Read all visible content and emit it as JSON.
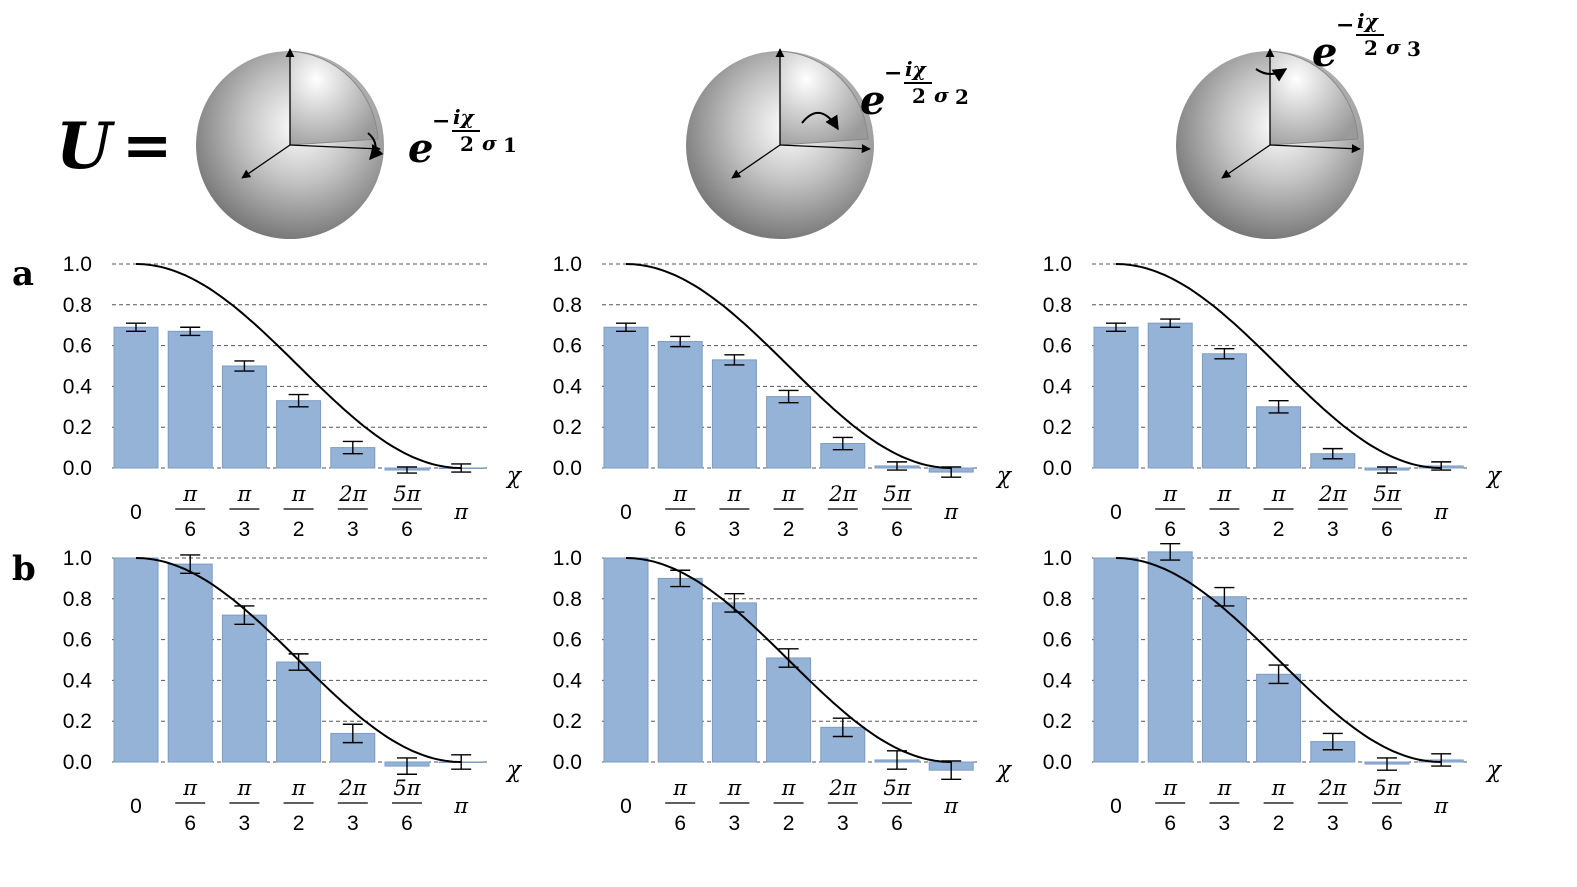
{
  "header": {
    "operator": "U",
    "equals": "=",
    "exponentials": [
      {
        "base": "e",
        "sign": "−",
        "numerator": "iχ",
        "denominator": "2",
        "sigma": "σ",
        "index": "1"
      },
      {
        "base": "e",
        "sign": "−",
        "numerator": "iχ",
        "denominator": "2",
        "sigma": "σ",
        "index": "2"
      },
      {
        "base": "e",
        "sign": "−",
        "numerator": "iχ",
        "denominator": "2",
        "sigma": "σ",
        "index": "3"
      }
    ]
  },
  "row_labels": [
    "a",
    "b"
  ],
  "axis": {
    "xlabel": "χ",
    "yticks": [
      "0.0",
      "0.2",
      "0.4",
      "0.6",
      "0.8",
      "1.0"
    ],
    "ylim": [
      0,
      1.0
    ]
  },
  "xticks": [
    {
      "num": "0",
      "den": ""
    },
    {
      "num": "π",
      "den": "6"
    },
    {
      "num": "π",
      "den": "3"
    },
    {
      "num": "π",
      "den": "2"
    },
    {
      "num": "2π",
      "den": "3"
    },
    {
      "num": "5π",
      "den": "6"
    },
    {
      "num": "π",
      "den": ""
    }
  ],
  "colors": {
    "bar": "#95b3d7",
    "bar_edge": "#7c9cc4",
    "curve": "#000000",
    "grid": "#555555"
  },
  "chart_data": [
    {
      "type": "bar",
      "panel": "a1",
      "rotation": "σ1",
      "categories": [
        "0",
        "π/6",
        "π/3",
        "π/2",
        "2π/3",
        "5π/6",
        "π"
      ],
      "chi": [
        0,
        0.5236,
        1.0472,
        1.5708,
        2.0944,
        2.618,
        3.1416
      ],
      "values": [
        0.69,
        0.67,
        0.5,
        0.33,
        0.1,
        -0.01,
        0.0
      ],
      "errors": [
        0.02,
        0.02,
        0.025,
        0.03,
        0.03,
        0.015,
        0.02
      ],
      "curve": "cos^2(chi/2)",
      "xlabel": "χ",
      "ylim": [
        0,
        1.0
      ]
    },
    {
      "type": "bar",
      "panel": "a2",
      "rotation": "σ2",
      "categories": [
        "0",
        "π/6",
        "π/3",
        "π/2",
        "2π/3",
        "5π/6",
        "π"
      ],
      "chi": [
        0,
        0.5236,
        1.0472,
        1.5708,
        2.0944,
        2.618,
        3.1416
      ],
      "values": [
        0.69,
        0.62,
        0.53,
        0.35,
        0.12,
        0.01,
        -0.02
      ],
      "errors": [
        0.02,
        0.025,
        0.025,
        0.03,
        0.03,
        0.02,
        0.025
      ],
      "curve": "cos^2(chi/2)",
      "xlabel": "χ",
      "ylim": [
        0,
        1.0
      ]
    },
    {
      "type": "bar",
      "panel": "a3",
      "rotation": "σ3",
      "categories": [
        "0",
        "π/6",
        "π/3",
        "π/2",
        "2π/3",
        "5π/6",
        "π"
      ],
      "chi": [
        0,
        0.5236,
        1.0472,
        1.5708,
        2.0944,
        2.618,
        3.1416
      ],
      "values": [
        0.69,
        0.71,
        0.56,
        0.3,
        0.07,
        -0.01,
        0.01
      ],
      "errors": [
        0.02,
        0.02,
        0.025,
        0.03,
        0.025,
        0.015,
        0.02
      ],
      "curve": "cos^2(chi/2)",
      "xlabel": "χ",
      "ylim": [
        0,
        1.0
      ]
    },
    {
      "type": "bar",
      "panel": "b1",
      "rotation": "σ1",
      "categories": [
        "0",
        "π/6",
        "π/3",
        "π/2",
        "2π/3",
        "5π/6",
        "π"
      ],
      "chi": [
        0,
        0.5236,
        1.0472,
        1.5708,
        2.0944,
        2.618,
        3.1416
      ],
      "values": [
        1.0,
        0.97,
        0.72,
        0.49,
        0.14,
        -0.02,
        0.0
      ],
      "errors": [
        0.0,
        0.045,
        0.045,
        0.04,
        0.045,
        0.04,
        0.035
      ],
      "curve": "cos^2(chi/2)",
      "xlabel": "χ",
      "ylim": [
        0,
        1.0
      ]
    },
    {
      "type": "bar",
      "panel": "b2",
      "rotation": "σ2",
      "categories": [
        "0",
        "π/6",
        "π/3",
        "π/2",
        "2π/3",
        "5π/6",
        "π"
      ],
      "chi": [
        0,
        0.5236,
        1.0472,
        1.5708,
        2.0944,
        2.618,
        3.1416
      ],
      "values": [
        1.0,
        0.9,
        0.78,
        0.51,
        0.17,
        0.01,
        -0.04
      ],
      "errors": [
        0.0,
        0.04,
        0.045,
        0.045,
        0.045,
        0.045,
        0.045
      ],
      "curve": "cos^2(chi/2)",
      "xlabel": "χ",
      "ylim": [
        0,
        1.0
      ]
    },
    {
      "type": "bar",
      "panel": "b3",
      "rotation": "σ3",
      "categories": [
        "0",
        "π/6",
        "π/3",
        "π/2",
        "2π/3",
        "5π/6",
        "π"
      ],
      "chi": [
        0,
        0.5236,
        1.0472,
        1.5708,
        2.0944,
        2.618,
        3.1416
      ],
      "values": [
        1.0,
        1.03,
        0.81,
        0.43,
        0.1,
        -0.01,
        0.01
      ],
      "errors": [
        0.0,
        0.04,
        0.045,
        0.045,
        0.04,
        0.03,
        0.03
      ],
      "curve": "cos^2(chi/2)",
      "xlabel": "χ",
      "ylim": [
        0,
        1.0
      ]
    }
  ]
}
